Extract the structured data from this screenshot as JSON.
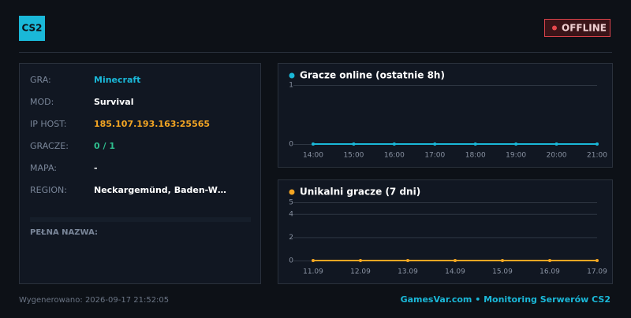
{
  "header": {
    "badge": "CS2",
    "status": "OFFLINE"
  },
  "info": {
    "rows": [
      [
        "GRA:",
        "Minecraft"
      ],
      [
        "MOD:",
        "Survival"
      ],
      [
        "IP HOST:",
        "185.107.193.163:25565"
      ],
      [
        "GRACZE:",
        "0 / 1"
      ],
      [
        "MAPA:",
        "-"
      ],
      [
        "REGION:",
        "Neckargemünd, Baden-W…"
      ]
    ],
    "full_name_label": "PEŁNA NAZWA:"
  },
  "chart_data": [
    {
      "type": "line",
      "title": "Gracze online (ostatnie 8h)",
      "color": "#1ab8d8",
      "categories": [
        "14:00",
        "15:00",
        "16:00",
        "17:00",
        "18:00",
        "19:00",
        "20:00",
        "21:00"
      ],
      "values": [
        0,
        0,
        0,
        0,
        0,
        0,
        0,
        0
      ],
      "ylim": [
        0,
        1
      ],
      "yticks": [
        0,
        1
      ],
      "grid": true
    },
    {
      "type": "line",
      "title": "Unikalni gracze (7 dni)",
      "color": "#f5a623",
      "categories": [
        "11.09",
        "12.09",
        "13.09",
        "14.09",
        "15.09",
        "16.09",
        "17.09"
      ],
      "values": [
        0,
        0,
        0,
        0,
        0,
        0,
        0
      ],
      "ylim": [
        0,
        5
      ],
      "yticks": [
        0,
        2,
        4,
        5
      ],
      "grid": true
    }
  ],
  "footer": {
    "generated": "Wygenerowano: 2026-09-17 21:52:05",
    "brand": "GamesVar.com • Monitoring Serwerów CS2"
  }
}
